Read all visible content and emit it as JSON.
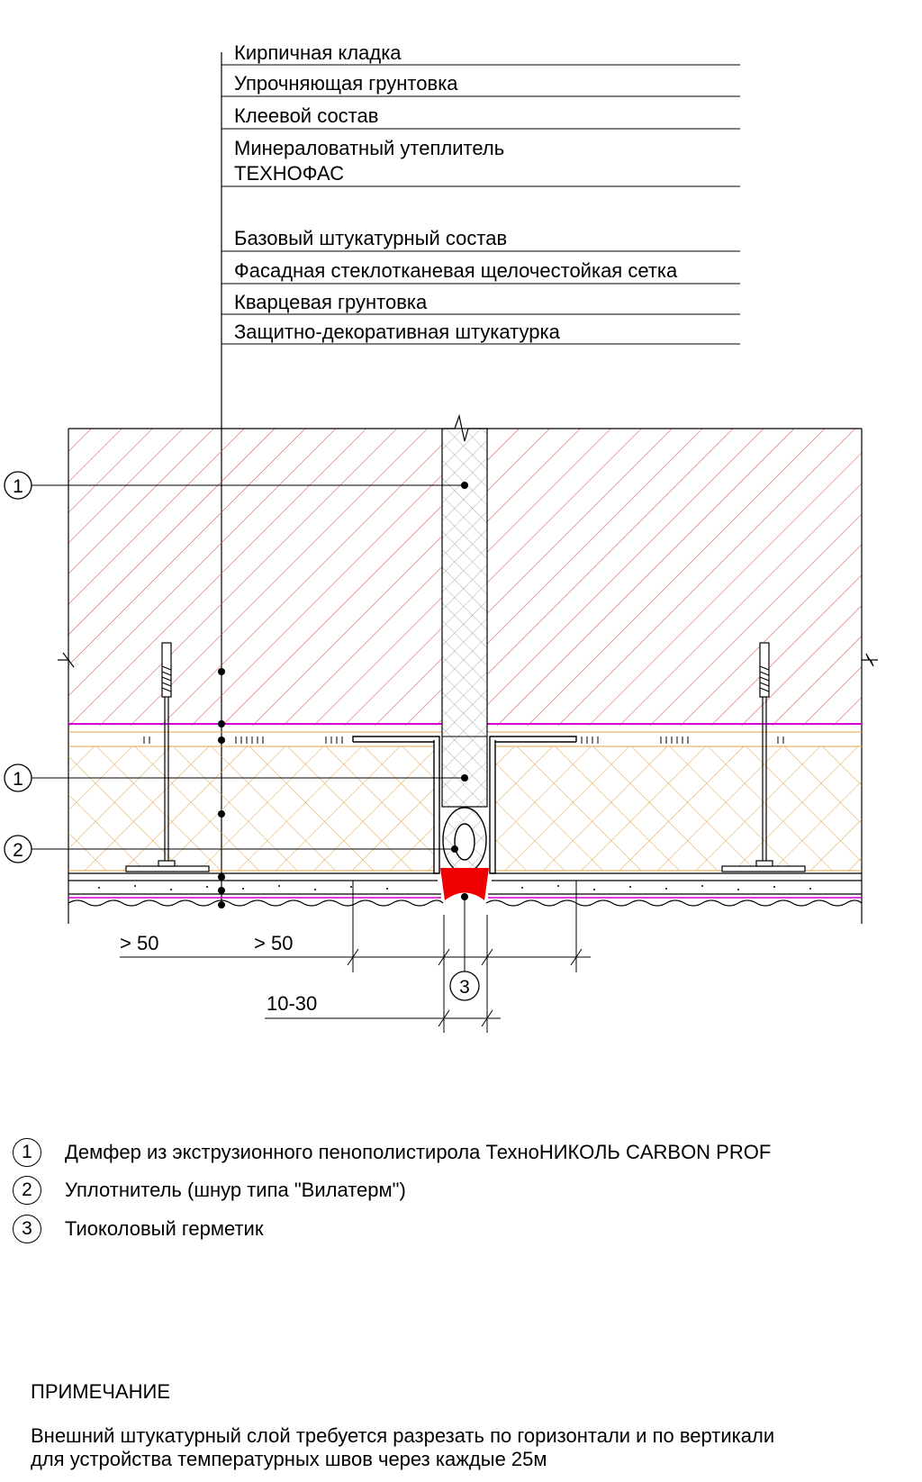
{
  "layers": [
    "Кирпичная кладка",
    "Упрочняющая грунтовка",
    "Клеевой состав",
    "Минераловатный утеплитель",
    "ТЕХНОФАС",
    "Базовый штукатурный состав",
    "Фасадная стеклотканевая щелочестойкая сетка",
    "Кварцевая грунтовка",
    "Защитно-декоративная штукатурка"
  ],
  "callouts": [
    "1",
    "1",
    "2",
    "3"
  ],
  "dimensions": {
    "left_a": "> 50",
    "left_b": "> 50",
    "joint": "10-30"
  },
  "legend": [
    {
      "num": "1",
      "text": "Демфер из экструзионного пенополистирола ТехноНИКОЛЬ  CARBON PROF"
    },
    {
      "num": "2",
      "text": "Уплотнитель (шнур типа \"Вилатерм\")"
    },
    {
      "num": "3",
      "text": "Тиоколовый герметик"
    }
  ],
  "note": {
    "title": "ПРИМЕЧАНИЕ",
    "lines": [
      "Внешний штукатурный слой требуется разрезать по горизонтали и по вертикали",
      "для устройства  температурных швов через каждые 25м"
    ]
  },
  "colors": {
    "brick_hatch": "#d9534f",
    "insulation_hatch": "#e3a24a",
    "primer_line": "#d400d4",
    "sealant": "#ee0000",
    "damper_hatch": "#888888"
  }
}
